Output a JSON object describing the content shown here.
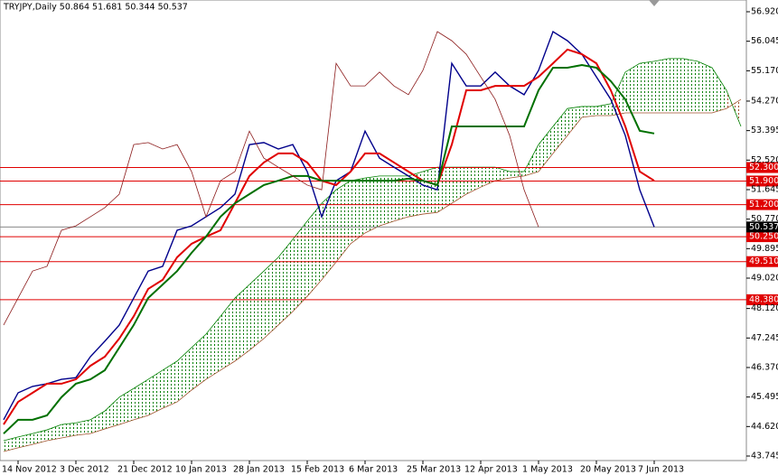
{
  "chart_data": {
    "type": "line",
    "title": "TRYJPY,Daily  50.864 51.681 50.344 50.537",
    "categories": [
      null,
      "14 Nov 2012",
      null,
      null,
      null,
      "3 Dec 2012",
      null,
      null,
      null,
      "21 Dec 2012",
      null,
      null,
      null,
      "10 Jan 2013",
      null,
      null,
      null,
      "28 Jan 2013",
      null,
      null,
      null,
      "15 Feb 2013",
      null,
      null,
      null,
      "6 Mar 2013",
      null,
      null,
      null,
      "25 Mar 2013",
      null,
      null,
      null,
      "12 Apr 2013",
      null,
      null,
      null,
      "1 May 2013",
      null,
      null,
      null,
      "20 May 2013",
      null,
      null,
      null,
      "7 Jun 2013",
      null,
      null,
      null,
      null,
      null,
      null
    ],
    "ylim": [
      43.745,
      56.92
    ],
    "yticks": [
      43.745,
      {
        "value": 44.62,
        "label": "44.620"
      },
      45.495,
      {
        "value": 46.37,
        "label": "46.370"
      },
      47.245,
      {
        "value": 48.12,
        "label": "48.120"
      },
      {
        "value": 49.02,
        "label": "49.020"
      },
      49.895,
      {
        "value": 50.77,
        "label": "50.770"
      },
      51.645,
      {
        "value": 52.52,
        "label": "52.520"
      },
      53.395,
      {
        "value": 54.27,
        "label": "54.270"
      },
      {
        "value": 55.17,
        "label": "55.170"
      },
      56.045,
      {
        "value": 56.92,
        "label": "56.920"
      }
    ],
    "series": [
      {
        "color": "#00008b",
        "values": [
          44.82,
          45.62,
          45.81,
          45.89,
          46.02,
          46.07,
          46.69,
          47.15,
          47.63,
          48.43,
          49.23,
          49.37,
          50.44,
          50.57,
          50.84,
          51.11,
          51.51,
          52.98,
          53.04,
          52.85,
          52.98,
          52.18,
          50.84,
          51.91,
          52.18,
          53.38,
          52.58,
          52.31,
          52.05,
          51.78,
          51.64,
          55.39,
          54.72,
          54.72,
          55.13,
          54.72,
          54.46,
          55.18,
          56.33,
          56.06,
          55.66,
          54.99,
          54.32,
          53.25,
          51.64,
          50.537,
          null,
          null,
          null,
          null,
          null,
          null
        ]
      },
      {
        "color": "#e00000",
        "values": [
          44.68,
          45.35,
          45.62,
          45.89,
          45.89,
          46.02,
          46.42,
          46.69,
          47.23,
          47.89,
          48.7,
          48.97,
          49.64,
          50.04,
          50.25,
          50.44,
          51.24,
          52.05,
          52.45,
          52.72,
          52.72,
          52.45,
          51.91,
          51.78,
          52.18,
          52.72,
          52.72,
          52.45,
          52.18,
          51.91,
          51.78,
          52.98,
          54.59,
          54.59,
          54.72,
          54.72,
          54.72,
          54.99,
          55.39,
          55.8,
          55.66,
          55.39,
          54.59,
          53.52,
          52.18,
          51.91,
          null,
          null,
          null,
          null,
          null,
          null
        ]
      },
      {
        "color": "#007000",
        "values": [
          44.41,
          44.82,
          44.82,
          44.95,
          45.49,
          45.89,
          46.02,
          46.29,
          46.96,
          47.63,
          48.43,
          48.83,
          49.23,
          49.77,
          50.25,
          50.84,
          51.24,
          51.51,
          51.78,
          51.91,
          52.05,
          52.05,
          51.91,
          51.91,
          51.91,
          51.91,
          51.91,
          51.91,
          51.97,
          51.91,
          51.78,
          53.52,
          53.52,
          53.52,
          53.52,
          53.52,
          53.52,
          54.59,
          55.26,
          55.26,
          55.34,
          55.26,
          54.86,
          54.32,
          53.39,
          53.31,
          null,
          null,
          null,
          null,
          null,
          null
        ]
      },
      {
        "color": "#8b1a1a",
        "values": [
          47.63,
          48.43,
          49.23,
          49.37,
          50.44,
          50.57,
          50.84,
          51.11,
          51.51,
          52.98,
          53.04,
          52.85,
          52.98,
          52.18,
          50.84,
          51.91,
          52.18,
          53.38,
          52.58,
          52.31,
          52.05,
          51.78,
          51.64,
          55.39,
          54.72,
          54.72,
          55.13,
          54.72,
          54.46,
          55.18,
          56.33,
          56.06,
          55.66,
          54.99,
          54.32,
          53.25,
          51.64,
          50.537,
          null,
          null,
          null,
          null,
          null,
          null,
          null,
          null,
          null,
          null,
          null,
          null,
          null,
          null
        ]
      }
    ],
    "cloud": {
      "up_color": "#008000",
      "down_color": "#a0522d",
      "span_a": [
        44.2,
        44.31,
        44.41,
        44.52,
        44.68,
        44.73,
        44.82,
        45.08,
        45.49,
        45.75,
        46.02,
        46.29,
        46.56,
        46.96,
        47.36,
        47.89,
        48.43,
        48.83,
        49.23,
        49.64,
        50.17,
        50.71,
        51.24,
        51.64,
        51.91,
        51.99,
        52.05,
        52.05,
        52.05,
        52.18,
        52.31,
        52.31,
        52.31,
        52.31,
        52.31,
        52.18,
        52.18,
        52.98,
        53.52,
        54.05,
        54.11,
        54.11,
        54.19,
        55.13,
        55.39,
        55.45,
        55.53,
        55.53,
        55.45,
        55.26,
        54.59,
        53.52
      ],
      "span_b": [
        43.88,
        43.99,
        44.09,
        44.2,
        44.28,
        44.36,
        44.41,
        44.55,
        44.68,
        44.82,
        44.95,
        45.16,
        45.35,
        45.7,
        46.02,
        46.29,
        46.56,
        46.88,
        47.23,
        47.63,
        48.03,
        48.48,
        48.97,
        49.5,
        50.04,
        50.36,
        50.57,
        50.71,
        50.84,
        50.92,
        50.97,
        51.24,
        51.51,
        51.72,
        51.91,
        51.99,
        52.05,
        52.18,
        52.72,
        53.25,
        53.79,
        53.84,
        53.84,
        53.92,
        53.92,
        53.92,
        53.92,
        53.92,
        53.92,
        53.92,
        54.05,
        54.32
      ]
    },
    "levels": [
      {
        "value": 52.3,
        "label": "52.300"
      },
      {
        "value": 51.9,
        "label": "51.900"
      },
      {
        "value": 51.2,
        "label": "51.200"
      },
      {
        "value": 50.25,
        "label": "50.250"
      },
      {
        "value": 49.51,
        "label": "49.510"
      },
      {
        "value": 48.38,
        "label": "48.380"
      }
    ],
    "level_color": "#e00000",
    "current_price": 50.537
  }
}
